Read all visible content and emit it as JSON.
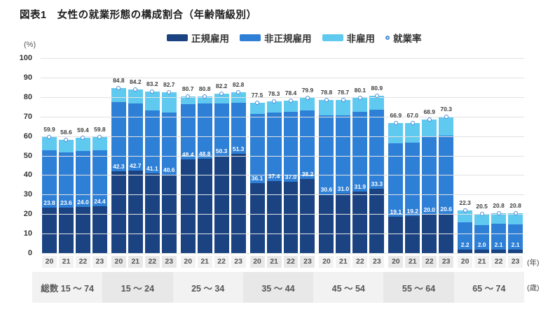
{
  "figure": {
    "title": "図表1　女性の就業形態の構成割合（年齢階級別）",
    "y_unit": "(%)",
    "x_unit_year": "(年)",
    "x_unit_age": "(歳)"
  },
  "colors": {
    "regular": "#1b4382",
    "nonregular": "#2e7fd6",
    "nonemployed": "#5fc9ef",
    "marker_ring": "#4a8bd8",
    "bar_value_label": "#ffffff",
    "rate_value_label": "#3d3d3d",
    "band_odd": "#f2f2f2",
    "band_even": "#e8e8e8",
    "gridline": "#e2e2e2"
  },
  "chart_data": {
    "type": "bar",
    "subtype": "stacked-percent-with-rate-marker",
    "title": "図表1　女性の就業形態の構成割合（年齢階級別）",
    "ylabel": "(%)",
    "ylim": [
      0,
      100
    ],
    "yticks": [
      0,
      10,
      20,
      30,
      40,
      50,
      60,
      70,
      80,
      90,
      100
    ],
    "grid": "horizontal",
    "legend_position": "top",
    "stack_order": [
      "regular",
      "nonregular",
      "nonemployed"
    ],
    "legend": [
      {
        "key": "regular",
        "label": "正規雇用",
        "color": "#1b4382",
        "marker": "square"
      },
      {
        "key": "nonregular",
        "label": "非正規雇用",
        "color": "#2e7fd6",
        "marker": "square"
      },
      {
        "key": "nonemployed",
        "label": "非雇用",
        "color": "#5fc9ef",
        "marker": "square"
      },
      {
        "key": "rate",
        "label": "就業率",
        "color": "#4a8bd8",
        "marker": "circle"
      }
    ],
    "groups": [
      {
        "age": "総数 15 ～ 74",
        "bars": [
          {
            "year": "20",
            "regular": 23.8,
            "nonregular": 29.2,
            "nonemployed": 6.9,
            "rate": 59.9
          },
          {
            "year": "21",
            "regular": 23.6,
            "nonregular": 28.5,
            "nonemployed": 6.5,
            "rate": 58.6
          },
          {
            "year": "22",
            "regular": 24.0,
            "nonregular": 28.6,
            "nonemployed": 6.8,
            "rate": 59.4
          },
          {
            "year": "23",
            "regular": 24.4,
            "nonregular": 28.5,
            "nonemployed": 6.9,
            "rate": 59.8
          }
        ]
      },
      {
        "age": "15 ～ 24",
        "bars": [
          {
            "year": "20",
            "regular": 42.3,
            "nonregular": 35.5,
            "nonemployed": 7.0,
            "rate": 84.8
          },
          {
            "year": "21",
            "regular": 42.7,
            "nonregular": 34.4,
            "nonemployed": 7.1,
            "rate": 84.2
          },
          {
            "year": "22",
            "regular": 41.1,
            "nonregular": 32.3,
            "nonemployed": 9.8,
            "rate": 83.2
          },
          {
            "year": "23",
            "regular": 40.6,
            "nonregular": 31.9,
            "nonemployed": 10.2,
            "rate": 82.7
          }
        ]
      },
      {
        "age": "25 ～ 34",
        "bars": [
          {
            "year": "20",
            "regular": 48.4,
            "nonregular": 28.2,
            "nonemployed": 4.1,
            "rate": 80.7
          },
          {
            "year": "21",
            "regular": 48.8,
            "nonregular": 28.3,
            "nonemployed": 3.7,
            "rate": 80.8
          },
          {
            "year": "22",
            "regular": 50.3,
            "nonregular": 26.9,
            "nonemployed": 5.0,
            "rate": 82.2
          },
          {
            "year": "23",
            "regular": 51.3,
            "nonregular": 26.2,
            "nonemployed": 5.3,
            "rate": 82.8
          }
        ]
      },
      {
        "age": "35 ～ 44",
        "bars": [
          {
            "year": "20",
            "regular": 36.1,
            "nonregular": 35.7,
            "nonemployed": 5.7,
            "rate": 77.5
          },
          {
            "year": "21",
            "regular": 37.4,
            "nonregular": 35.0,
            "nonemployed": 5.9,
            "rate": 78.3
          },
          {
            "year": "22",
            "regular": 37.0,
            "nonregular": 35.8,
            "nonemployed": 5.6,
            "rate": 78.4
          },
          {
            "year": "23",
            "regular": 38.2,
            "nonregular": 35.2,
            "nonemployed": 6.5,
            "rate": 79.9
          }
        ]
      },
      {
        "age": "45 ～ 54",
        "bars": [
          {
            "year": "20",
            "regular": 30.6,
            "nonregular": 40.4,
            "nonemployed": 7.8,
            "rate": 78.8
          },
          {
            "year": "21",
            "regular": 31.0,
            "nonregular": 40.0,
            "nonemployed": 7.7,
            "rate": 78.7
          },
          {
            "year": "22",
            "regular": 31.9,
            "nonregular": 40.9,
            "nonemployed": 7.3,
            "rate": 80.1
          },
          {
            "year": "23",
            "regular": 33.3,
            "nonregular": 40.4,
            "nonemployed": 7.2,
            "rate": 80.9
          }
        ]
      },
      {
        "age": "55 ～ 64",
        "bars": [
          {
            "year": "20",
            "regular": 19.1,
            "nonregular": 37.5,
            "nonemployed": 10.3,
            "rate": 66.9
          },
          {
            "year": "21",
            "regular": 19.2,
            "nonregular": 37.8,
            "nonemployed": 10.0,
            "rate": 67.0
          },
          {
            "year": "22",
            "regular": 20.0,
            "nonregular": 39.9,
            "nonemployed": 9.0,
            "rate": 68.9
          },
          {
            "year": "23",
            "regular": 20.6,
            "nonregular": 39.9,
            "nonemployed": 9.8,
            "rate": 70.3
          }
        ]
      },
      {
        "age": "65 ～ 74",
        "bars": [
          {
            "year": "20",
            "regular": 2.2,
            "nonregular": 13.8,
            "nonemployed": 6.3,
            "rate": 22.3
          },
          {
            "year": "21",
            "regular": 2.0,
            "nonregular": 12.8,
            "nonemployed": 5.7,
            "rate": 20.5
          },
          {
            "year": "22",
            "regular": 2.1,
            "nonregular": 13.3,
            "nonemployed": 5.4,
            "rate": 20.8
          },
          {
            "year": "23",
            "regular": 2.1,
            "nonregular": 13.0,
            "nonemployed": 5.7,
            "rate": 20.8
          }
        ]
      }
    ],
    "labeled_values": [
      "regular",
      "rate"
    ]
  }
}
